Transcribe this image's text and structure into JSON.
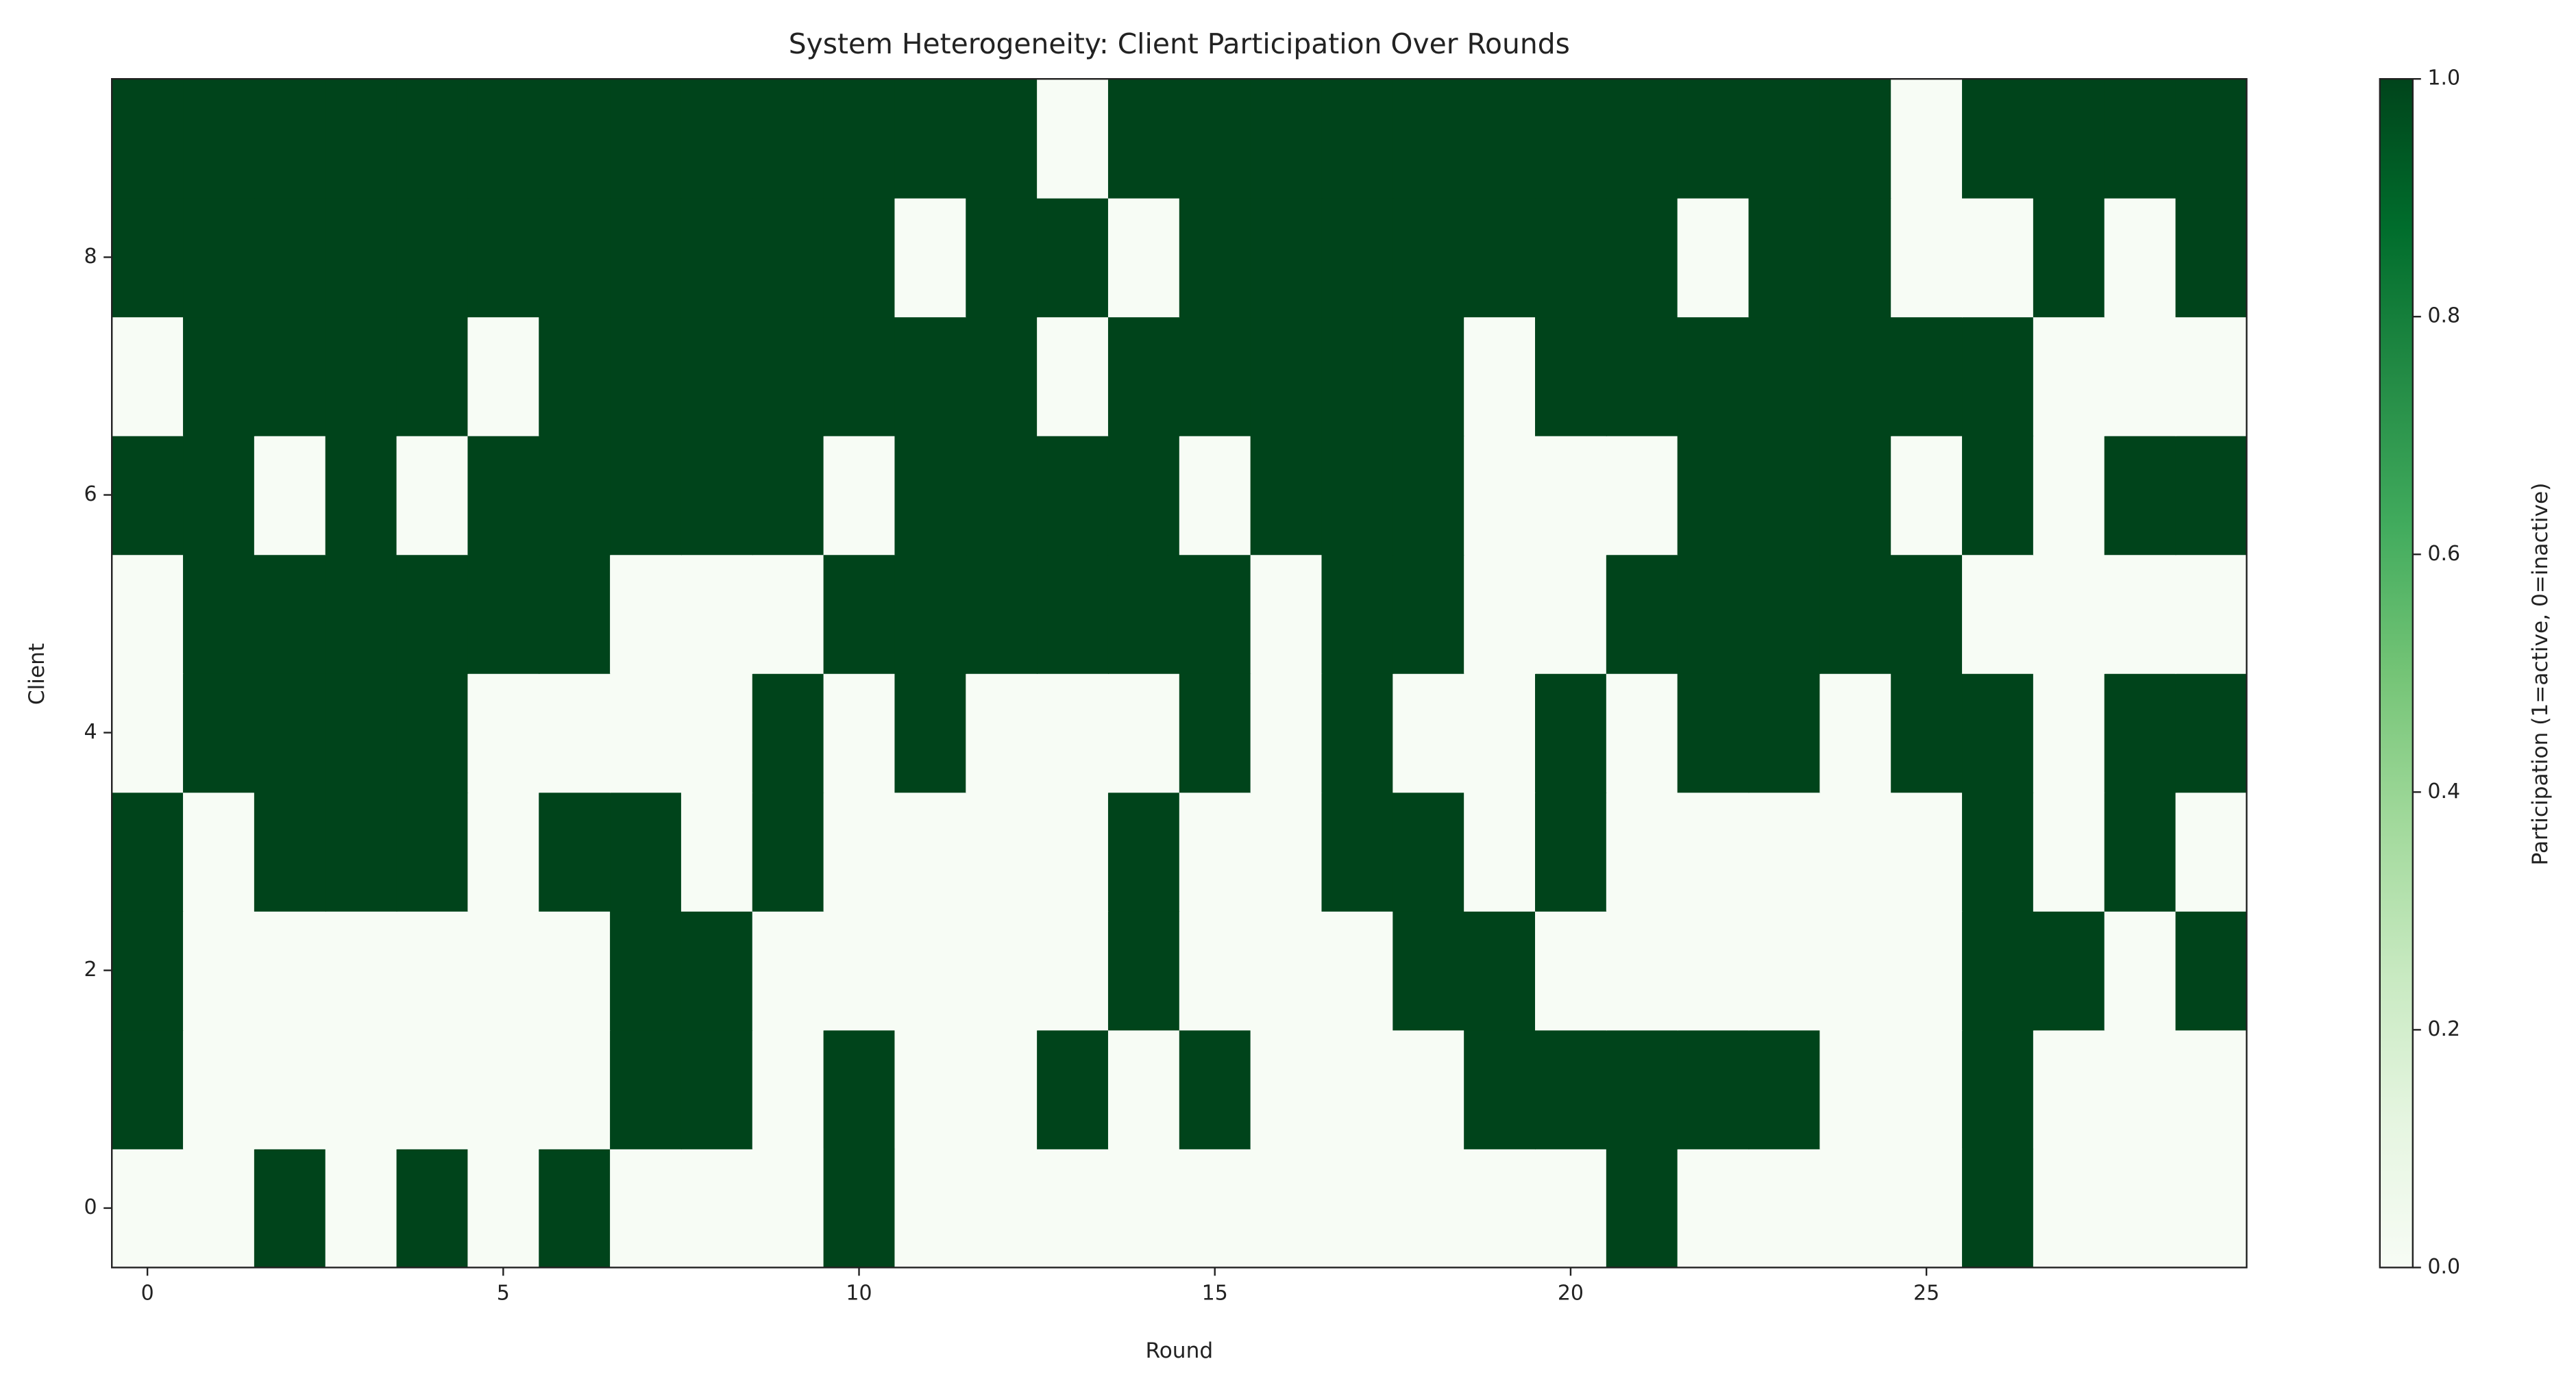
{
  "chart_data": {
    "type": "heatmap",
    "title": "System Heterogeneity: Client Participation Over Rounds",
    "xlabel": "Round",
    "ylabel": "Client",
    "colorbar_label": "Participation (1=active, 0=inactive)",
    "colormap": "Greens",
    "xlim": [
      -0.5,
      29.5
    ],
    "xticks": [
      0,
      5,
      10,
      15,
      20,
      25
    ],
    "ylim": [
      -0.5,
      9.5
    ],
    "yticks": [
      0,
      2,
      4,
      6,
      8
    ],
    "clim": [
      0,
      1
    ],
    "cticks": [
      {
        "value": 0,
        "label": "0.0"
      },
      {
        "value": 0.2,
        "label": "0.2"
      },
      {
        "value": 0.4,
        "label": "0.4"
      },
      {
        "value": 0.6,
        "label": "0.6"
      },
      {
        "value": 0.8,
        "label": "0.8"
      },
      {
        "value": 1,
        "label": "1.0"
      }
    ],
    "z": [
      [
        0,
        0,
        1,
        0,
        1,
        0,
        1,
        0,
        0,
        0,
        1,
        0,
        0,
        0,
        0,
        0,
        0,
        0,
        0,
        0,
        0,
        1,
        0,
        0,
        0,
        0,
        1,
        0,
        0,
        0
      ],
      [
        1,
        0,
        0,
        0,
        0,
        0,
        0,
        1,
        1,
        0,
        1,
        0,
        0,
        1,
        0,
        1,
        0,
        0,
        0,
        1,
        1,
        1,
        1,
        1,
        0,
        0,
        1,
        0,
        0,
        0
      ],
      [
        1,
        0,
        0,
        0,
        0,
        0,
        0,
        1,
        1,
        0,
        0,
        0,
        0,
        0,
        1,
        0,
        0,
        0,
        1,
        1,
        0,
        0,
        0,
        0,
        0,
        0,
        1,
        1,
        0,
        1
      ],
      [
        1,
        0,
        1,
        1,
        1,
        0,
        1,
        1,
        0,
        1,
        0,
        0,
        0,
        0,
        1,
        0,
        0,
        1,
        1,
        0,
        1,
        0,
        0,
        0,
        0,
        0,
        1,
        0,
        1,
        0
      ],
      [
        0,
        1,
        1,
        1,
        1,
        0,
        0,
        0,
        0,
        1,
        0,
        1,
        0,
        0,
        0,
        1,
        0,
        1,
        0,
        0,
        1,
        0,
        1,
        1,
        0,
        1,
        1,
        0,
        1,
        1
      ],
      [
        0,
        1,
        1,
        1,
        1,
        1,
        1,
        0,
        0,
        0,
        1,
        1,
        1,
        1,
        1,
        1,
        0,
        1,
        1,
        0,
        0,
        1,
        1,
        1,
        1,
        1,
        0,
        0,
        0,
        0
      ],
      [
        1,
        1,
        0,
        1,
        0,
        1,
        1,
        1,
        1,
        1,
        0,
        1,
        1,
        1,
        1,
        0,
        1,
        1,
        1,
        0,
        0,
        0,
        1,
        1,
        1,
        0,
        1,
        0,
        1,
        1
      ],
      [
        0,
        1,
        1,
        1,
        1,
        0,
        1,
        1,
        1,
        1,
        1,
        1,
        1,
        0,
        1,
        1,
        1,
        1,
        1,
        0,
        1,
        1,
        1,
        1,
        1,
        1,
        1,
        0,
        0,
        0
      ],
      [
        1,
        1,
        1,
        1,
        1,
        1,
        1,
        1,
        1,
        1,
        1,
        0,
        1,
        1,
        0,
        1,
        1,
        1,
        1,
        1,
        1,
        1,
        0,
        1,
        1,
        0,
        0,
        1,
        0,
        1
      ],
      [
        1,
        1,
        1,
        1,
        1,
        1,
        1,
        1,
        1,
        1,
        1,
        1,
        1,
        0,
        1,
        1,
        1,
        1,
        1,
        1,
        1,
        1,
        1,
        1,
        1,
        0,
        1,
        1,
        1,
        1
      ]
    ]
  }
}
